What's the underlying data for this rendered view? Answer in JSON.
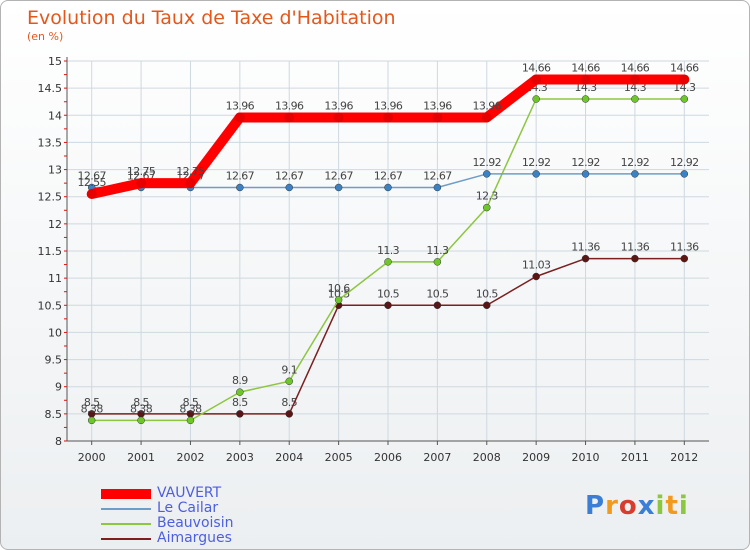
{
  "title": "Evolution du Taux de Taxe d'Habitation",
  "unit": "(en %)",
  "logo": "Proxiti",
  "colors": {
    "title": "#e4571b",
    "grid": "#cfd8e0",
    "axis": "#555555",
    "legend_text": "#4d5ee0"
  },
  "chart_data": {
    "type": "line",
    "title": "Evolution du Taux de Taxe d'Habitation",
    "ylabel": "(en %)",
    "xlabel": "",
    "ylim": [
      8,
      15
    ],
    "yticks": [
      "8",
      "8.5",
      "9",
      "9.5",
      "10",
      "10.5",
      "11",
      "11.5",
      "12",
      "12.5",
      "13",
      "13.5",
      "14",
      "14.5",
      "15"
    ],
    "x": [
      "2000",
      "2001",
      "2002",
      "2003",
      "2004",
      "2005",
      "2006",
      "2007",
      "2008",
      "2009",
      "2010",
      "2011",
      "2012"
    ],
    "grid": true,
    "legend": "bottom-left",
    "series": [
      {
        "name": "Aimargues",
        "color": "#7b1f1f",
        "marker": "#5a1515",
        "values": [
          8.5,
          8.5,
          8.5,
          8.5,
          8.5,
          10.5,
          10.5,
          10.5,
          10.5,
          11.03,
          11.36,
          11.36,
          11.36
        ],
        "labels": [
          "8.5",
          "8.5",
          "8.5",
          "8.5",
          "8.5",
          "10.5",
          "10.5",
          "10.5",
          "10.5",
          "11.03",
          "11.36",
          "11.36",
          "11.36"
        ]
      },
      {
        "name": "Beauvoisin",
        "color": "#8dc63f",
        "marker": "#6fc62a",
        "values": [
          8.38,
          8.38,
          8.38,
          8.9,
          9.1,
          10.6,
          11.3,
          11.3,
          12.3,
          14.3,
          14.3,
          14.3,
          14.3
        ],
        "labels": [
          "8.38",
          "8.38",
          "8.38",
          "8.9",
          "9.1",
          "10.6",
          "11.3",
          "11.3",
          "12.3",
          "14.3",
          "14.3",
          "14.3",
          "14.3"
        ]
      },
      {
        "name": "Le Cailar",
        "color": "#6d9ec7",
        "marker": "#3b82c4",
        "values": [
          12.67,
          12.67,
          12.67,
          12.67,
          12.67,
          12.67,
          12.67,
          12.67,
          12.92,
          12.92,
          12.92,
          12.92,
          12.92
        ],
        "labels": [
          "12.67",
          "12.67",
          "12.67",
          "12.67",
          "12.67",
          "12.67",
          "12.67",
          "12.67",
          "12.92",
          "12.92",
          "12.92",
          "12.92",
          "12.92"
        ]
      },
      {
        "name": "VAUVERT",
        "color": "#ff0000",
        "marker": "#e60000",
        "values": [
          12.55,
          12.75,
          12.75,
          13.96,
          13.96,
          13.96,
          13.96,
          13.96,
          13.96,
          14.66,
          14.66,
          14.66,
          14.66
        ],
        "labels": [
          "12.55",
          "12.75",
          "12.75",
          "13.96",
          "13.96",
          "13.96",
          "13.96",
          "13.96",
          "13.96",
          "14.66",
          "14.66",
          "14.66",
          "14.66"
        ]
      }
    ],
    "legend_order": [
      "VAUVERT",
      "Le Cailar",
      "Beauvoisin",
      "Aimargues"
    ]
  }
}
